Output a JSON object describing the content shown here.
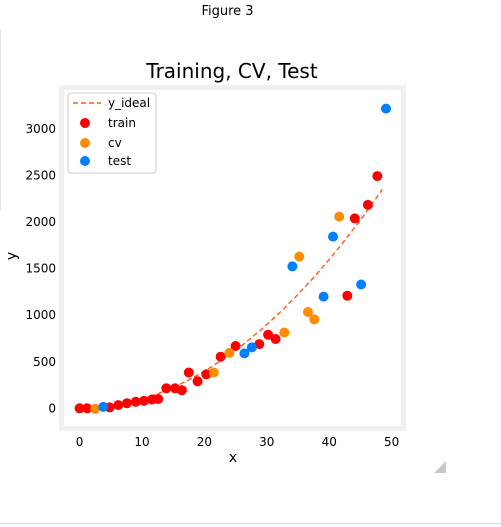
{
  "window": {
    "title": "Figure 3"
  },
  "colors": {
    "train": "#ff0000",
    "cv": "#ff8c00",
    "test": "#0080ff",
    "ideal": "#ff5a1a",
    "frame": "#f0f0f0",
    "tick_text": "#000000"
  },
  "chart_data": {
    "type": "scatter",
    "title": "Training, CV, Test",
    "xlabel": "x",
    "ylabel": "y",
    "xlim": [
      -2.5,
      51.5
    ],
    "ylim": [
      -190,
      3420
    ],
    "xticks": [
      0,
      10,
      20,
      30,
      40,
      50
    ],
    "yticks": [
      0,
      500,
      1000,
      1500,
      2000,
      2500,
      3000
    ],
    "grid": false,
    "legend": {
      "placement": "top-left",
      "entries": [
        "y_ideal",
        "train",
        "cv",
        "test"
      ]
    },
    "ideal_curve": {
      "name": "y_ideal",
      "style": "dashed",
      "x_range": [
        0,
        48.5
      ],
      "coef_x2": 1.0,
      "intercept": 0
    },
    "series": [
      {
        "name": "train",
        "color": "#ff0000",
        "x": [
          0,
          1.2,
          4.8,
          6.2,
          7.6,
          9,
          10.3,
          11.6,
          12.6,
          13.9,
          15.3,
          16.4,
          17.5,
          18.9,
          20.3,
          22.6,
          25,
          28.8,
          30.2,
          31.4,
          42.9,
          44.1,
          46.2,
          47.7
        ],
        "y": [
          0,
          0,
          10,
          35,
          55,
          70,
          80,
          95,
          100,
          215,
          215,
          195,
          385,
          290,
          365,
          555,
          670,
          690,
          790,
          745,
          1210,
          2040,
          2185,
          2495
        ]
      },
      {
        "name": "cv",
        "color": "#ff8c00",
        "x": [
          2.5,
          21.5,
          24,
          32.8,
          35.2,
          36.6,
          37.6,
          41.6
        ],
        "y": [
          -5,
          385,
          595,
          815,
          1630,
          1035,
          955,
          2060
        ]
      },
      {
        "name": "test",
        "color": "#0080ff",
        "x": [
          3.8,
          26.4,
          27.6,
          34.1,
          39.1,
          40.6,
          45.1,
          49.1
        ],
        "y": [
          15,
          590,
          655,
          1525,
          1200,
          1845,
          1330,
          3220
        ]
      }
    ]
  }
}
